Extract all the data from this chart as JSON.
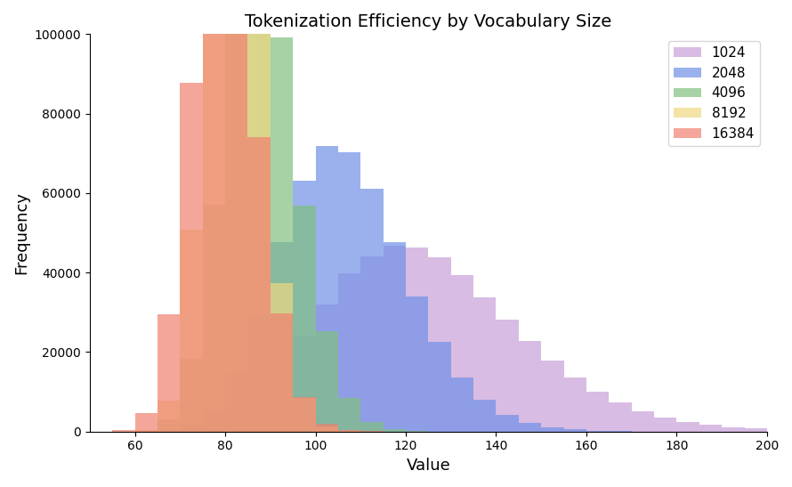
{
  "title": "Tokenization Efficiency by Vocabulary Size",
  "xlabel": "Value",
  "ylabel": "Frequency",
  "xlim": [
    50,
    200
  ],
  "ylim": [
    0,
    100000
  ],
  "series": [
    {
      "label": "1024",
      "color": "#C8A0D8",
      "alpha": 0.7,
      "mean": 125,
      "std": 22,
      "skew": 0.8,
      "n": 500000
    },
    {
      "label": "2048",
      "color": "#7090E8",
      "alpha": 0.7,
      "mean": 107,
      "std": 14,
      "skew": 0.6,
      "n": 500000
    },
    {
      "label": "4096",
      "color": "#80C080",
      "alpha": 0.7,
      "mean": 88,
      "std": 8,
      "skew": 0.4,
      "n": 500000
    },
    {
      "label": "8192",
      "color": "#F0D880",
      "alpha": 0.7,
      "mean": 82,
      "std": 6,
      "skew": 0.3,
      "n": 500000
    },
    {
      "label": "16384",
      "color": "#F08070",
      "alpha": 0.7,
      "mean": 80,
      "std": 7,
      "skew": 0.5,
      "n": 500000
    }
  ],
  "bins": 30,
  "bin_range": [
    50,
    200
  ],
  "figsize": [
    8.9,
    5.47
  ],
  "dpi": 100
}
